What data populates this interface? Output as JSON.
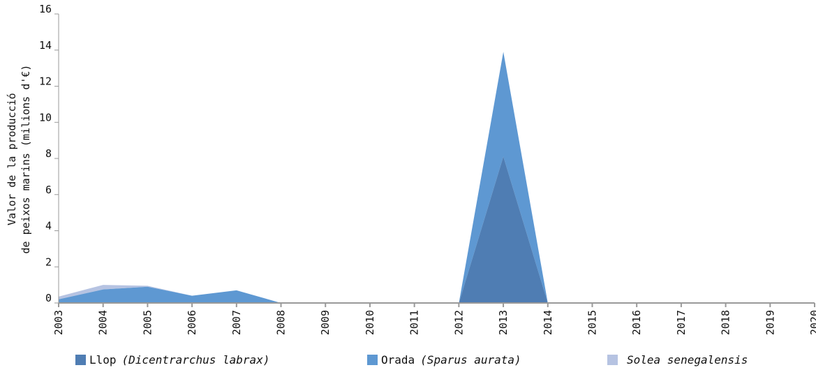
{
  "chart_data": {
    "type": "area",
    "stacked": true,
    "title": "",
    "xlabel": "",
    "ylabel_lines": [
      "Valor de la producció",
      "de peixos marins (milions d'€)"
    ],
    "x": [
      2003,
      2004,
      2005,
      2006,
      2007,
      2008,
      2009,
      2010,
      2011,
      2012,
      2013,
      2014,
      2015,
      2016,
      2017,
      2018,
      2019,
      2020
    ],
    "xlim": [
      2003,
      2020
    ],
    "ylim": [
      0,
      16
    ],
    "yticks": [
      0,
      2,
      4,
      6,
      8,
      10,
      12,
      14,
      16
    ],
    "grid": false,
    "legend_position": "bottom",
    "series": [
      {
        "key": "llop",
        "name": "Llop",
        "scientific": "(Dicentrarchus labrax)",
        "color": "#4f7db3",
        "values": [
          0,
          0,
          0,
          0,
          0,
          0,
          0,
          0,
          0,
          0,
          8.1,
          0,
          0,
          0,
          0,
          0,
          0,
          0
        ]
      },
      {
        "key": "orada",
        "name": "Orada",
        "scientific": "(Sparus aurata)",
        "color": "#5e98d2",
        "values": [
          0.2,
          0.75,
          0.9,
          0.4,
          0.7,
          0,
          0,
          0,
          0,
          0,
          5.8,
          0,
          0,
          0,
          0,
          0,
          0,
          0
        ]
      },
      {
        "key": "solea",
        "name": "",
        "scientific": "Solea senegalensis",
        "color": "#b6c3e2",
        "values": [
          0.15,
          0.25,
          0.05,
          0,
          0,
          0,
          0,
          0,
          0,
          0,
          0,
          0,
          0,
          0,
          0,
          0,
          0,
          0
        ]
      }
    ]
  }
}
